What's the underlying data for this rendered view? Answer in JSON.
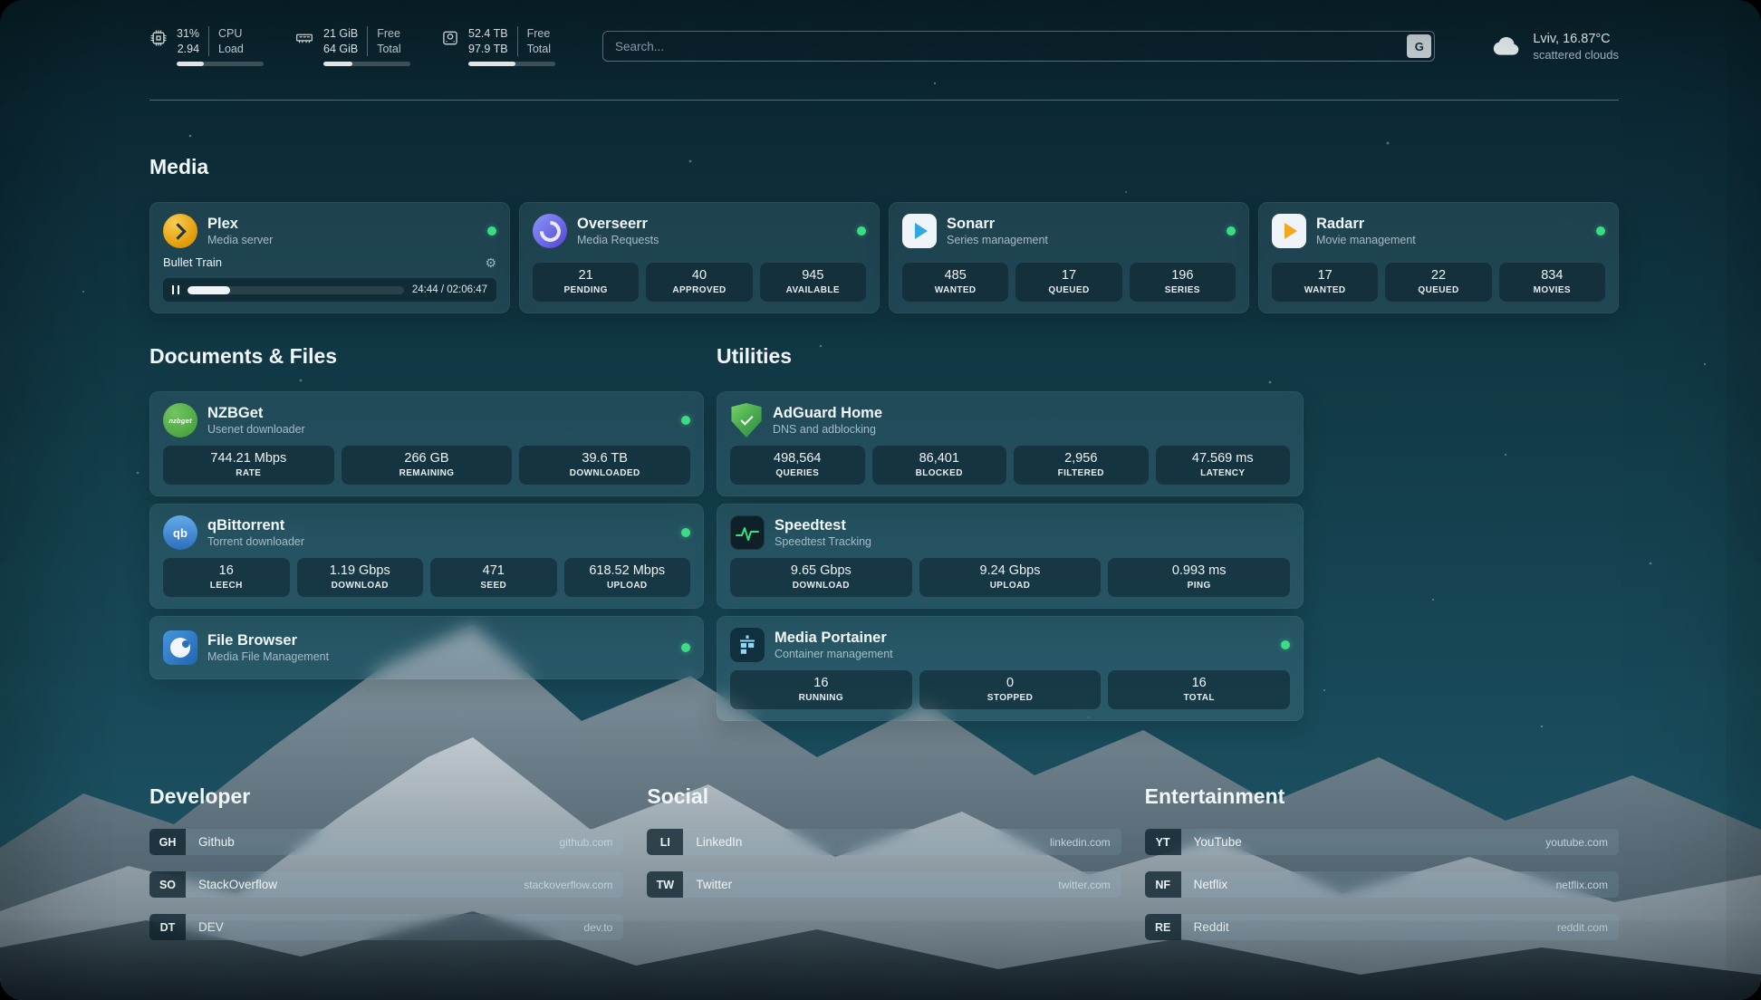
{
  "header": {
    "cpu": {
      "value_top": "31%",
      "value_bottom": "2.94",
      "label_top": "CPU",
      "label_bottom": "Load",
      "progress": 31
    },
    "ram": {
      "value_top": "21 GiB",
      "value_bottom": "64 GiB",
      "label_top": "Free",
      "label_bottom": "Total",
      "progress": 33
    },
    "disk": {
      "value_top": "52.4 TB",
      "value_bottom": "97.9 TB",
      "label_top": "Free",
      "label_bottom": "Total",
      "progress": 54
    },
    "search": {
      "placeholder": "Search...",
      "button_label": "G"
    },
    "weather": {
      "location": "Lviv, 16.87°C",
      "condition": "scattered clouds"
    }
  },
  "media": {
    "title": "Media",
    "plex": {
      "name": "Plex",
      "desc": "Media server",
      "now_playing": "Bullet Train",
      "time": "24:44 / 02:06:47",
      "progress": 19.5,
      "status": "online"
    },
    "overseerr": {
      "name": "Overseerr",
      "desc": "Media Requests",
      "status": "online",
      "stats": [
        {
          "value": "21",
          "label": "PENDING"
        },
        {
          "value": "40",
          "label": "APPROVED"
        },
        {
          "value": "945",
          "label": "AVAILABLE"
        }
      ]
    },
    "sonarr": {
      "name": "Sonarr",
      "desc": "Series management",
      "status": "online",
      "stats": [
        {
          "value": "485",
          "label": "WANTED"
        },
        {
          "value": "17",
          "label": "QUEUED"
        },
        {
          "value": "196",
          "label": "SERIES"
        }
      ]
    },
    "radarr": {
      "name": "Radarr",
      "desc": "Movie management",
      "status": "online",
      "stats": [
        {
          "value": "17",
          "label": "WANTED"
        },
        {
          "value": "22",
          "label": "QUEUED"
        },
        {
          "value": "834",
          "label": "MOVIES"
        }
      ]
    }
  },
  "documents": {
    "title": "Documents & Files",
    "nzbget": {
      "name": "NZBGet",
      "desc": "Usenet downloader",
      "icon_text": "nzbget",
      "status": "online",
      "stats": [
        {
          "value": "744.21 Mbps",
          "label": "RATE"
        },
        {
          "value": "266 GB",
          "label": "REMAINING"
        },
        {
          "value": "39.6 TB",
          "label": "DOWNLOADED"
        }
      ]
    },
    "qbittorrent": {
      "name": "qBittorrent",
      "desc": "Torrent downloader",
      "icon_text": "qb",
      "status": "online",
      "stats": [
        {
          "value": "16",
          "label": "LEECH"
        },
        {
          "value": "1.19 Gbps",
          "label": "DOWNLOAD"
        },
        {
          "value": "471",
          "label": "SEED"
        },
        {
          "value": "618.52 Mbps",
          "label": "UPLOAD"
        }
      ]
    },
    "filebrowser": {
      "name": "File Browser",
      "desc": "Media File Management",
      "status": "online"
    }
  },
  "utilities": {
    "title": "Utilities",
    "adguard": {
      "name": "AdGuard Home",
      "desc": "DNS and adblocking",
      "stats": [
        {
          "value": "498,564",
          "label": "QUERIES"
        },
        {
          "value": "86,401",
          "label": "BLOCKED"
        },
        {
          "value": "2,956",
          "label": "FILTERED"
        },
        {
          "value": "47.569 ms",
          "label": "LATENCY"
        }
      ]
    },
    "speedtest": {
      "name": "Speedtest",
      "desc": "Speedtest Tracking",
      "stats": [
        {
          "value": "9.65 Gbps",
          "label": "DOWNLOAD"
        },
        {
          "value": "9.24 Gbps",
          "label": "UPLOAD"
        },
        {
          "value": "0.993 ms",
          "label": "PING"
        }
      ]
    },
    "portainer": {
      "name": "Media Portainer",
      "desc": "Container management",
      "status": "online",
      "stats": [
        {
          "value": "16",
          "label": "RUNNING"
        },
        {
          "value": "0",
          "label": "STOPPED"
        },
        {
          "value": "16",
          "label": "TOTAL"
        }
      ]
    }
  },
  "bookmarks": [
    {
      "title": "Developer",
      "items": [
        {
          "abbr": "GH",
          "name": "Github",
          "url": "github.com"
        },
        {
          "abbr": "SO",
          "name": "StackOverflow",
          "url": "stackoverflow.com"
        },
        {
          "abbr": "DT",
          "name": "DEV",
          "url": "dev.to"
        }
      ]
    },
    {
      "title": "Social",
      "items": [
        {
          "abbr": "LI",
          "name": "LinkedIn",
          "url": "linkedin.com"
        },
        {
          "abbr": "TW",
          "name": "Twitter",
          "url": "twitter.com"
        }
      ]
    },
    {
      "title": "Entertainment",
      "items": [
        {
          "abbr": "YT",
          "name": "YouTube",
          "url": "youtube.com"
        },
        {
          "abbr": "NF",
          "name": "Netflix",
          "url": "netflix.com"
        },
        {
          "abbr": "RE",
          "name": "Reddit",
          "url": "reddit.com"
        }
      ]
    }
  ],
  "icons": {
    "cpu": "cpu-chip",
    "ram": "memory-module",
    "disk": "hard-drive",
    "weather": "cloud",
    "search_engine": "letter-g",
    "plex": "chevron-right-circle",
    "overseerr": "swirl-circle",
    "sonarr": "play-arrow",
    "radarr": "play-arrow",
    "nzbget": "nzbget-logo",
    "qbittorrent": "qb-logo",
    "filebrowser": "circle-logo",
    "adguard": "shield-check",
    "speedtest": "waveform",
    "portainer": "crane-containers",
    "status": "online-dot",
    "settings": "gear",
    "pause": "pause-bars"
  },
  "colors": {
    "status_online": "#3ddc84",
    "plex": "#e5a00d",
    "overseerr": "#5643d6",
    "sonarr": "#2fa8e0",
    "radarr": "#f6a51f",
    "nzbget": "#3e9a35",
    "qbittorrent": "#2e6ebd",
    "filebrowser": "#2a6fb8",
    "adguard": "#4caf50",
    "speedtest_accent": "#3ae07c",
    "portainer": "#8fd8f4",
    "background": "#15424f"
  }
}
